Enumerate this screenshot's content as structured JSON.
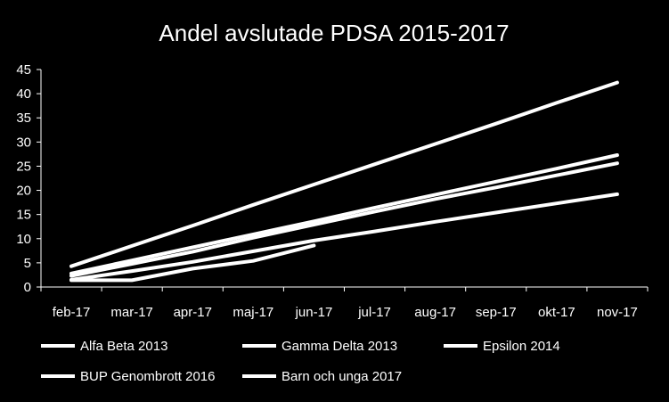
{
  "chart_data": {
    "type": "line",
    "title": "Andel avslutade PDSA 2015-2017",
    "xlabel": "",
    "ylabel": "",
    "categories": [
      "feb-17",
      "mar-17",
      "apr-17",
      "maj-17",
      "jun-17",
      "jul-17",
      "aug-17",
      "sep-17",
      "okt-17",
      "nov-17"
    ],
    "ylim": [
      0,
      45
    ],
    "yticks": [
      "0",
      "5",
      "10",
      "15",
      "20",
      "25",
      "30",
      "35",
      "40",
      "45"
    ],
    "grid": false,
    "legend_position": "bottom",
    "line_color": "#ffffff",
    "background": "#000000",
    "series": [
      {
        "name": "Alfa Beta 2013",
        "values": [
          4.3,
          8.5,
          12.7,
          17.0,
          21.2,
          25.4,
          29.6,
          33.8,
          38.1,
          42.3
        ]
      },
      {
        "name": "Gamma Delta 2013",
        "values": [
          2.8,
          5.5,
          8.2,
          10.9,
          13.6,
          16.4,
          19.1,
          21.8,
          24.5,
          27.3
        ]
      },
      {
        "name": "Epsilon 2014",
        "values": [
          2.3,
          4.8,
          7.3,
          10.2,
          12.9,
          15.6,
          18.2,
          20.6,
          23.1,
          25.6
        ]
      },
      {
        "name": "BUP Genombrott 2016",
        "values": [
          1.5,
          3.3,
          5.2,
          7.4,
          9.6,
          11.5,
          13.5,
          15.4,
          17.3,
          19.2
        ]
      },
      {
        "name": "Barn och unga 2017",
        "values": [
          1.4,
          1.4,
          3.8,
          5.4,
          8.6,
          null,
          null,
          null,
          null,
          null
        ]
      }
    ]
  }
}
